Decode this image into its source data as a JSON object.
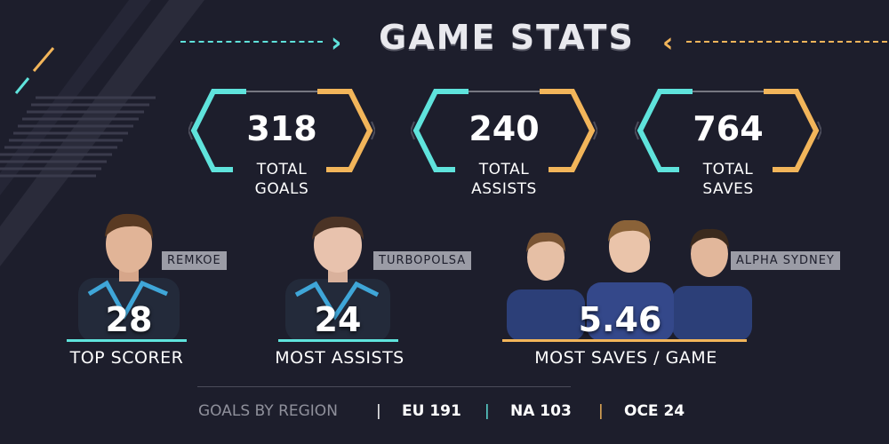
{
  "header": {
    "title": "GAME STATS"
  },
  "stats": [
    {
      "value": "318",
      "label_line1": "TOTAL",
      "label_line2": "GOALS"
    },
    {
      "value": "240",
      "label_line1": "TOTAL",
      "label_line2": "ASSISTS"
    },
    {
      "value": "764",
      "label_line1": "TOTAL",
      "label_line2": "SAVES"
    }
  ],
  "players": [
    {
      "name": "REMKOE",
      "value": "28",
      "label": "TOP SCORER"
    },
    {
      "name": "TURBOPOLSA",
      "value": "24",
      "label": "MOST ASSISTS"
    },
    {
      "name": "ALPHA SYDNEY",
      "value": "5.46",
      "label": "MOST SAVES / GAME"
    }
  ],
  "regions": {
    "heading": "GOALS BY REGION",
    "items": [
      {
        "label": "EU 191",
        "divider_color": "#ffffff"
      },
      {
        "label": "NA 103",
        "divider_color": "#5fe3dc"
      },
      {
        "label": "OCE 24",
        "divider_color": "#f2b55a"
      }
    ]
  },
  "colors": {
    "cyan": "#5fe3dc",
    "orange": "#f2b55a",
    "background": "#1d1e2c"
  },
  "icons": {
    "title_left": "chevron-right-icon",
    "title_right": "chevron-left-icon"
  }
}
